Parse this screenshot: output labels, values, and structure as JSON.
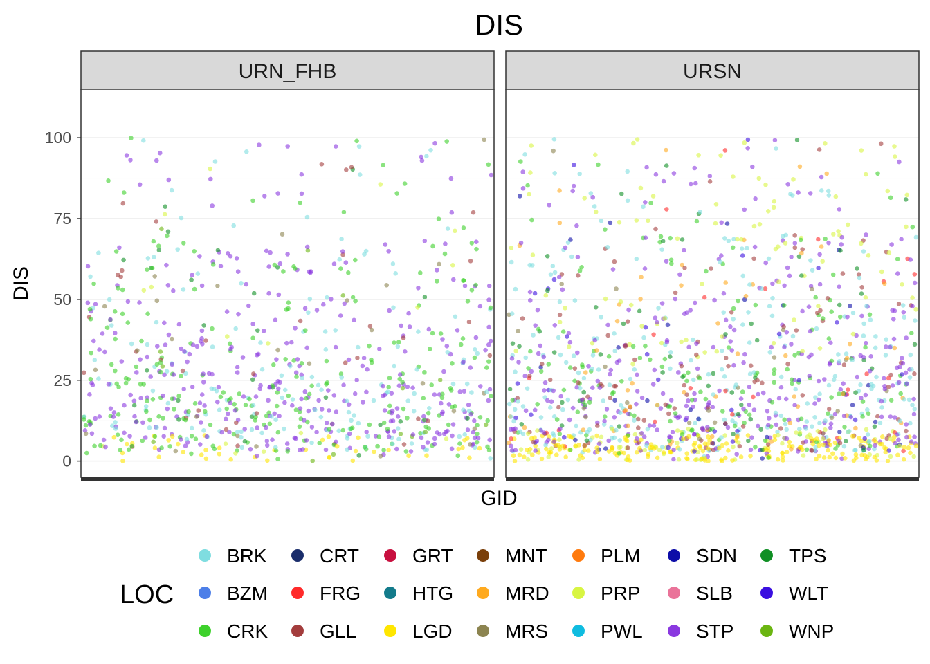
{
  "chart_data": {
    "type": "scatter",
    "title": "DIS",
    "xlabel": "GID",
    "ylabel": "DIS",
    "ylim": [
      -5,
      115
    ],
    "y_ticks": [
      0,
      25,
      50,
      75,
      100
    ],
    "y_tick_labels": [
      "0",
      "25",
      "50",
      "75",
      "100"
    ],
    "grid": true,
    "legend_position": "bottom",
    "legend_title": "LOC",
    "panels": [
      {
        "name": "URN_FHB"
      },
      {
        "name": "URSN"
      }
    ],
    "series": [
      {
        "name": "BRK",
        "color": "#7fdde0"
      },
      {
        "name": "BZM",
        "color": "#4d7fe8"
      },
      {
        "name": "CRK",
        "color": "#3ed12c"
      },
      {
        "name": "CRT",
        "color": "#1a2d6b"
      },
      {
        "name": "FRG",
        "color": "#ff2a2a"
      },
      {
        "name": "GLL",
        "color": "#a33d3d"
      },
      {
        "name": "GRT",
        "color": "#c8103f"
      },
      {
        "name": "HTG",
        "color": "#137b8b"
      },
      {
        "name": "LGD",
        "color": "#ffe600"
      },
      {
        "name": "MNT",
        "color": "#7a3f0a"
      },
      {
        "name": "MRD",
        "color": "#ffaa1f"
      },
      {
        "name": "MRS",
        "color": "#8c8450"
      },
      {
        "name": "PLM",
        "color": "#ff7a0d"
      },
      {
        "name": "PRP",
        "color": "#d8f542"
      },
      {
        "name": "PWL",
        "color": "#0fbce0"
      },
      {
        "name": "SDN",
        "color": "#0d0da8"
      },
      {
        "name": "SLB",
        "color": "#ea7399"
      },
      {
        "name": "STP",
        "color": "#8a38e0"
      },
      {
        "name": "TPS",
        "color": "#0f8f24"
      },
      {
        "name": "WLT",
        "color": "#3a0fe0"
      },
      {
        "name": "WNP",
        "color": "#6bb511"
      }
    ],
    "legend_columns": [
      [
        "BRK",
        "BZM",
        "CRK"
      ],
      [
        "CRT",
        "FRG",
        "GLL"
      ],
      [
        "GRT",
        "HTG",
        "LGD"
      ],
      [
        "MNT",
        "MRD",
        "MRS"
      ],
      [
        "PLM",
        "PRP",
        "PWL"
      ],
      [
        "SDN",
        "SLB",
        "STP"
      ],
      [
        "TPS",
        "WLT",
        "WNP"
      ]
    ],
    "colors": {
      "strip_fill": "#d9d9d9",
      "panel_border": "#333333",
      "grid_major": "#ebebeb",
      "grid_minor": "#f5f5f5"
    }
  }
}
